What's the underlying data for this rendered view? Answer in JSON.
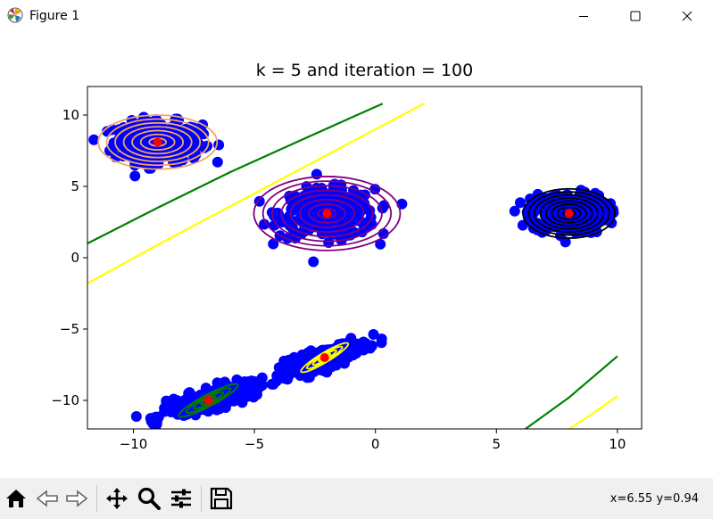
{
  "window": {
    "title": "Figure 1",
    "icon": "matplotlib-icon",
    "controls": [
      "minimize-icon",
      "maximize-icon",
      "close-icon"
    ]
  },
  "toolbar": {
    "buttons": [
      "home-icon",
      "back-icon",
      "forward-icon",
      "pan-icon",
      "zoom-icon",
      "configure-subplots-icon",
      "save-icon"
    ],
    "coords": "x=6.55 y=0.94"
  },
  "chart_data": {
    "type": "scatter",
    "title": "k = 5 and iteration = 100",
    "xlabel": "",
    "ylabel": "",
    "xlim": [
      -11.9,
      11.0
    ],
    "ylim": [
      -12.0,
      12.0
    ],
    "xticks": [
      -10,
      -5,
      0,
      5,
      10
    ],
    "yticks": [
      -10,
      -5,
      0,
      5,
      10
    ],
    "xtick_labels": [
      "−10",
      "−5",
      "0",
      "5",
      "10"
    ],
    "ytick_labels": [
      "−10",
      "−5",
      "0",
      "5",
      "10"
    ],
    "grid": false,
    "point_color": "#0000ff",
    "center_color": "#ff0000",
    "clusters": [
      {
        "center": [
          -9.0,
          8.1
        ],
        "contour_color": "#f4a460",
        "spread": [
          1.3,
          1.0
        ],
        "angle": 0,
        "rings": 7,
        "ring_step": 0.2
      },
      {
        "center": [
          -2.0,
          3.1
        ],
        "contour_color": "#800080",
        "spread": [
          1.4,
          1.2
        ],
        "angle": 0,
        "rings": 8,
        "ring_step": 0.2
      },
      {
        "center": [
          8.0,
          3.1
        ],
        "contour_color": "#000000",
        "spread": [
          1.1,
          1.0
        ],
        "angle": 0,
        "rings": 8,
        "ring_step": 0.16
      },
      {
        "center": [
          -2.1,
          -7.0
        ],
        "contour_color": "#ffff00",
        "spread": [
          1.4,
          0.42
        ],
        "angle": 31,
        "rings": 4,
        "ring_step": 0.15
      },
      {
        "center": [
          -6.9,
          -10.0
        ],
        "contour_color": "#008000",
        "spread": [
          1.5,
          0.45
        ],
        "angle": 28,
        "rings": 4,
        "ring_step": 0.17
      }
    ],
    "boundary_lines": [
      {
        "color": "#008000",
        "points": [
          [
            -11.9,
            1.0
          ],
          [
            -9,
            3.5
          ],
          [
            -6,
            6.0
          ],
          [
            -3,
            8.3
          ],
          [
            0.3,
            10.8
          ]
        ]
      },
      {
        "color": "#ffff00",
        "points": [
          [
            -11.9,
            -1.8
          ],
          [
            -9,
            0.9
          ],
          [
            -6,
            3.6
          ],
          [
            -3,
            6.3
          ],
          [
            2.0,
            10.8
          ]
        ]
      },
      {
        "color": "#008000",
        "points": [
          [
            6.2,
            -12.0
          ],
          [
            8.0,
            -9.8
          ],
          [
            10.0,
            -6.9
          ]
        ]
      },
      {
        "color": "#ffff00",
        "points": [
          [
            8.0,
            -12.0
          ],
          [
            9.0,
            -10.9
          ],
          [
            10.0,
            -9.7
          ]
        ]
      }
    ]
  }
}
